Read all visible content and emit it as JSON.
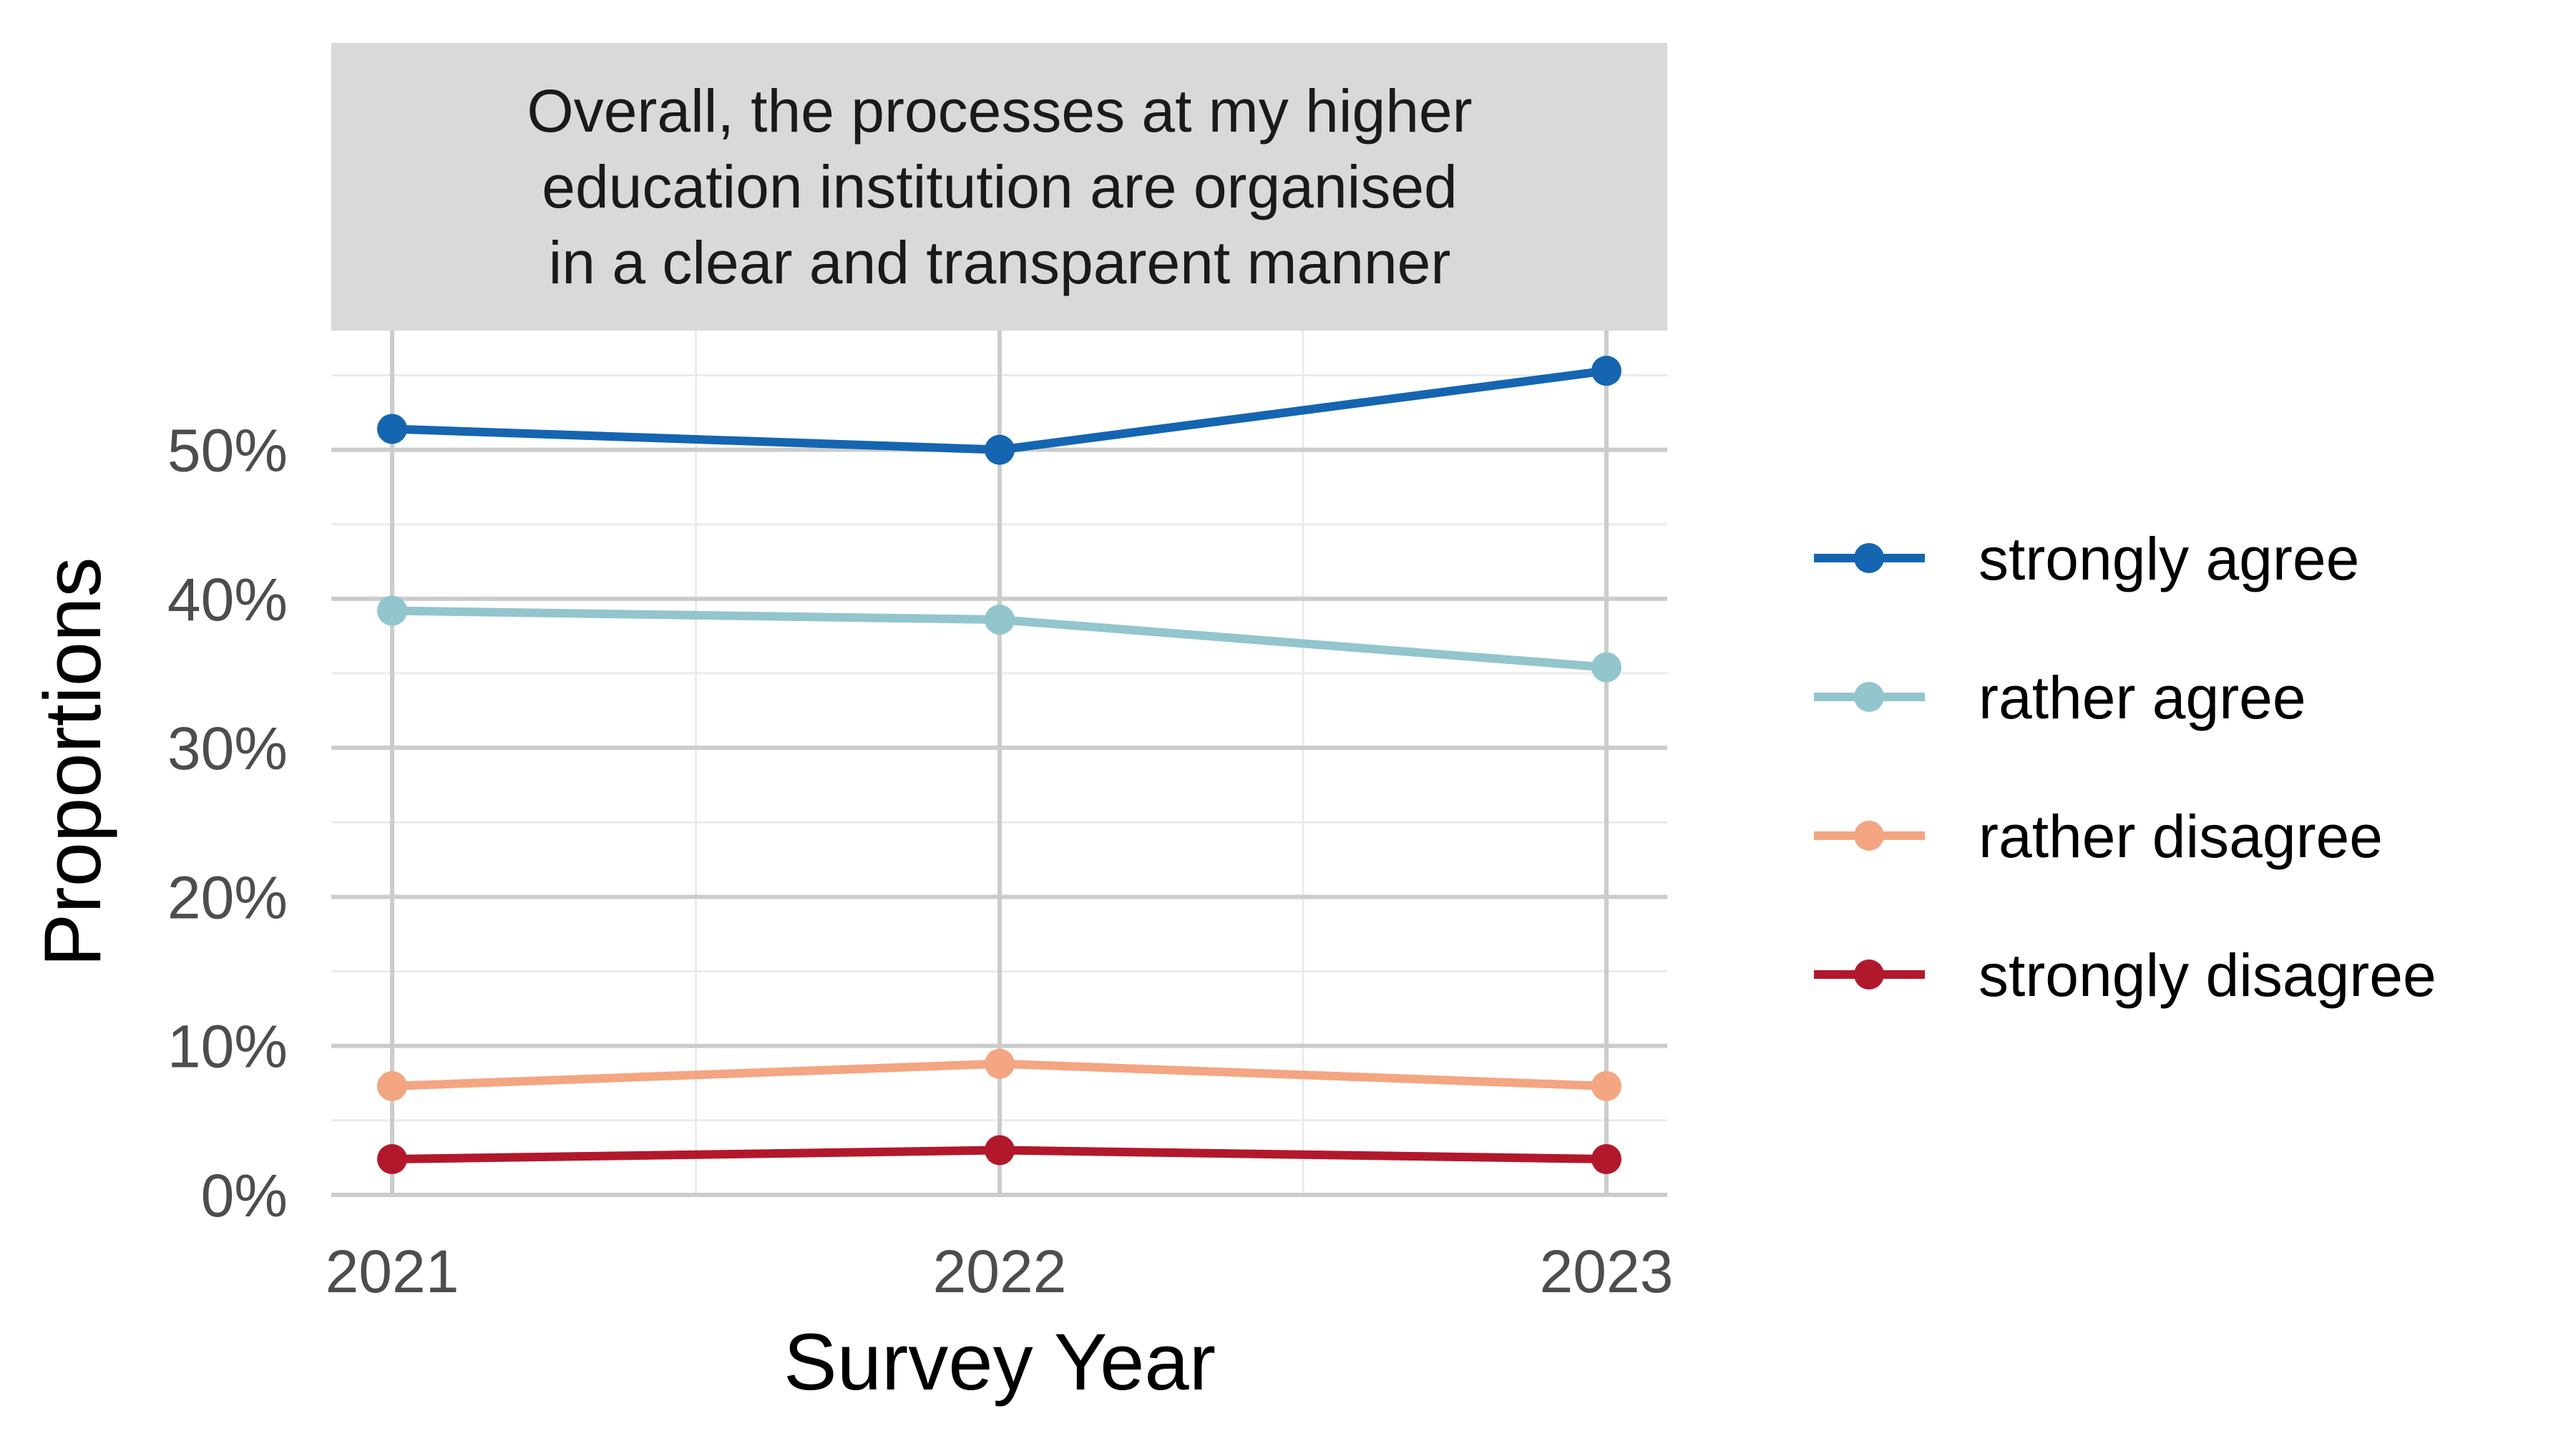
{
  "chart_data": {
    "type": "line",
    "title_lines": [
      "Overall, the processes at my higher",
      "education institution are organised",
      "in a clear and transparent manner"
    ],
    "xlabel": "Survey Year",
    "ylabel": "Proportions",
    "x": [
      "2021",
      "2022",
      "2023"
    ],
    "y_ticks": [
      "0%",
      "10%",
      "20%",
      "30%",
      "40%",
      "50%"
    ],
    "ylim": [
      0,
      58
    ],
    "grid": true,
    "legend_position": "right",
    "series": [
      {
        "name": "strongly agree",
        "color": "#1565B0",
        "values": [
          51.4,
          50.0,
          55.3
        ]
      },
      {
        "name": "rather agree",
        "color": "#92C5CC",
        "values": [
          39.2,
          38.6,
          35.4
        ]
      },
      {
        "name": "rather disagree",
        "color": "#F4A582",
        "values": [
          7.3,
          8.8,
          7.3
        ]
      },
      {
        "name": "strongly disagree",
        "color": "#B2182B",
        "values": [
          2.4,
          3.0,
          2.4
        ]
      }
    ]
  }
}
